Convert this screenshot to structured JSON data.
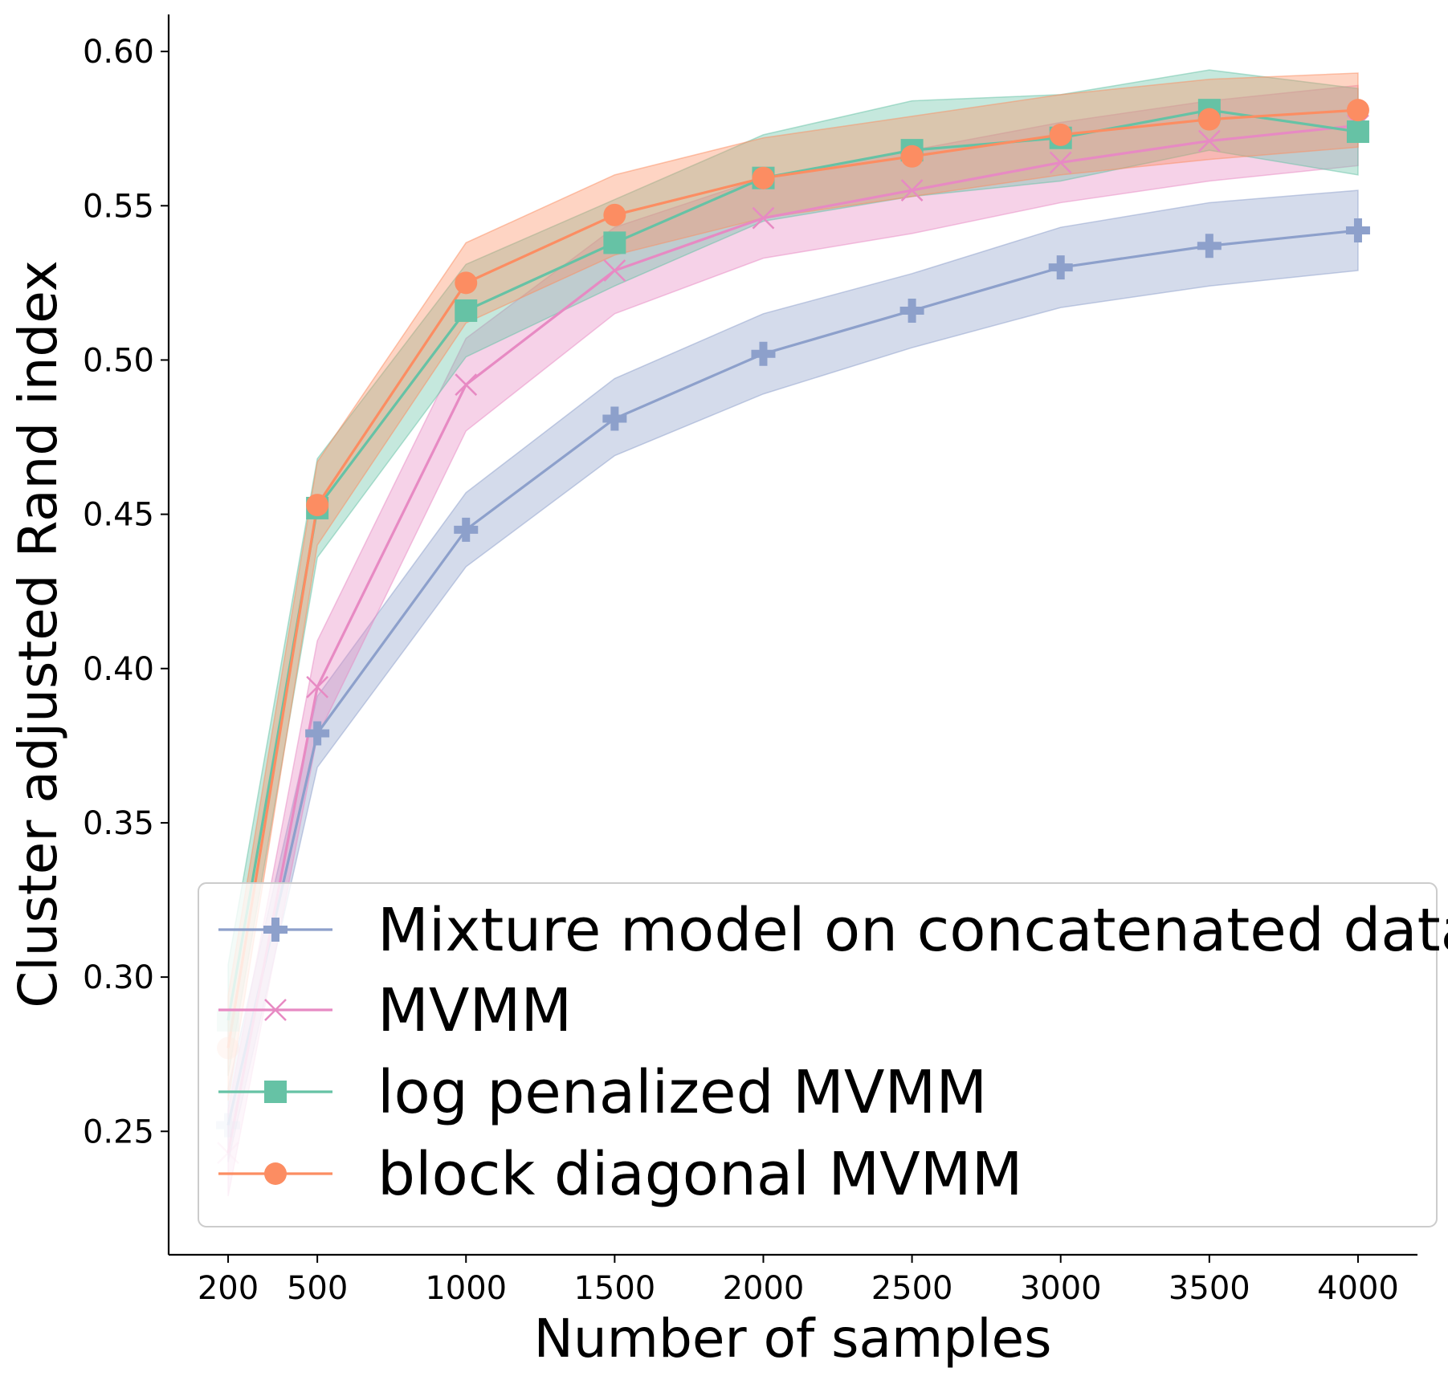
{
  "chart_data": {
    "type": "line",
    "title": "",
    "xlabel": "Number of samples",
    "ylabel": "Cluster adjusted Rand index",
    "x": [
      200,
      500,
      1000,
      1500,
      2000,
      2500,
      3000,
      3500,
      4000
    ],
    "xticks": [
      "200",
      "500",
      "1000",
      "1500",
      "2000",
      "2500",
      "3000",
      "3500",
      "4000"
    ],
    "yticks": [
      "0.25",
      "0.30",
      "0.35",
      "0.40",
      "0.45",
      "0.50",
      "0.55",
      "0.60"
    ],
    "ytick_values": [
      0.25,
      0.3,
      0.35,
      0.4,
      0.45,
      0.5,
      0.55,
      0.6
    ],
    "xlim": [
      0,
      4200
    ],
    "ylim": [
      0.21,
      0.612
    ],
    "grid": false,
    "legend_position": "lower-right",
    "series": [
      {
        "name": "Mixture model on concatenated data",
        "color": "#8da0cb",
        "marker": "plus",
        "values": [
          0.252,
          0.379,
          0.445,
          0.481,
          0.502,
          0.516,
          0.53,
          0.537,
          0.542
        ],
        "lower": [
          0.24,
          0.368,
          0.433,
          0.469,
          0.489,
          0.504,
          0.517,
          0.524,
          0.529
        ],
        "upper": [
          0.264,
          0.391,
          0.457,
          0.494,
          0.515,
          0.528,
          0.543,
          0.551,
          0.555
        ]
      },
      {
        "name": "MVMM",
        "color": "#e78ac3",
        "marker": "x",
        "values": [
          0.243,
          0.394,
          0.492,
          0.529,
          0.546,
          0.555,
          0.564,
          0.571,
          0.576
        ],
        "lower": [
          0.229,
          0.378,
          0.477,
          0.515,
          0.533,
          0.541,
          0.551,
          0.558,
          0.563
        ],
        "upper": [
          0.257,
          0.409,
          0.507,
          0.543,
          0.559,
          0.568,
          0.577,
          0.584,
          0.589
        ]
      },
      {
        "name": "log penalized MVMM",
        "color": "#66c2a5",
        "marker": "square",
        "values": [
          0.286,
          0.452,
          0.516,
          0.538,
          0.559,
          0.568,
          0.572,
          0.581,
          0.574
        ],
        "lower": [
          0.268,
          0.436,
          0.501,
          0.524,
          0.545,
          0.553,
          0.558,
          0.568,
          0.56
        ],
        "upper": [
          0.304,
          0.468,
          0.531,
          0.552,
          0.573,
          0.584,
          0.586,
          0.594,
          0.588
        ]
      },
      {
        "name": "block diagonal MVMM",
        "color": "#fc8d62",
        "marker": "circle",
        "values": [
          0.277,
          0.453,
          0.525,
          0.547,
          0.559,
          0.566,
          0.573,
          0.578,
          0.581
        ],
        "lower": [
          0.26,
          0.44,
          0.512,
          0.534,
          0.546,
          0.553,
          0.56,
          0.565,
          0.569
        ],
        "upper": [
          0.294,
          0.467,
          0.538,
          0.56,
          0.572,
          0.579,
          0.586,
          0.591,
          0.593
        ]
      }
    ]
  }
}
